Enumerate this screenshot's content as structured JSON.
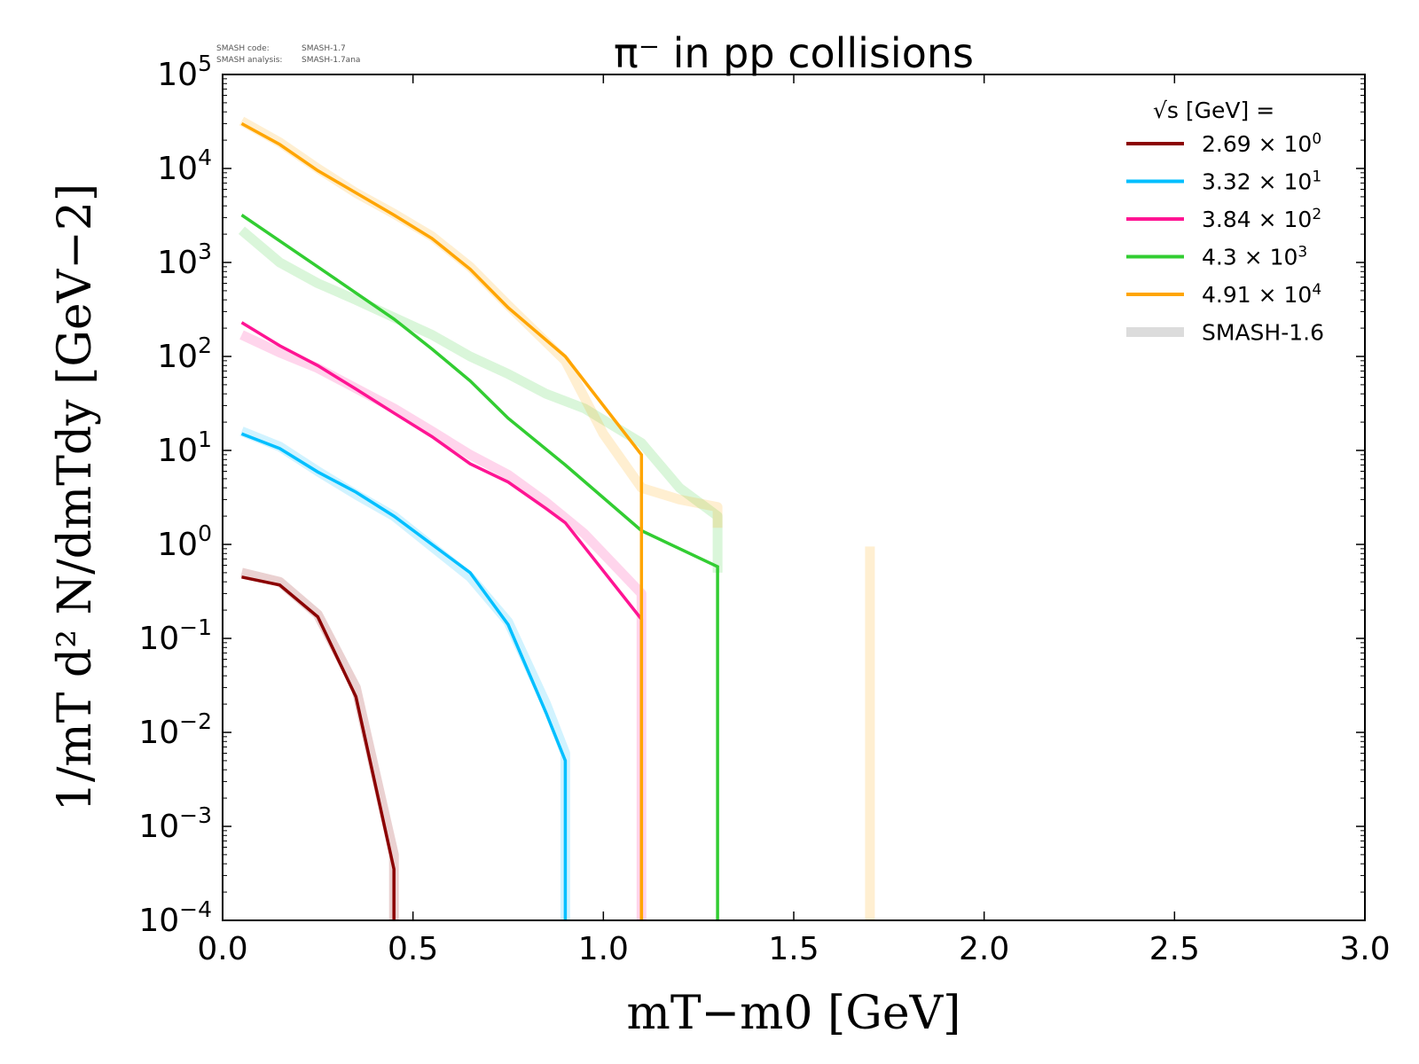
{
  "meta": {
    "code_label": "SMASH code:",
    "code_value": "SMASH-1.7",
    "analysis_label": "SMASH analysis:",
    "analysis_value": "SMASH-1.7ana"
  },
  "chart_data": {
    "type": "line",
    "title": "π⁻ in pp collisions",
    "xlabel": "mT−m0 [GeV]",
    "ylabel": "1/mT d² N/dmTdy [GeV−2]",
    "xlim": [
      0.0,
      3.0
    ],
    "ylim": [
      0.0001,
      100000
    ],
    "yscale": "log",
    "grid": false,
    "legend_position": "top-right",
    "legend_title": "√s  [GeV] =",
    "x_ticks": [
      "0.0",
      "0.5",
      "1.0",
      "1.5",
      "2.0",
      "2.5",
      "3.0"
    ],
    "y_ticks": [
      {
        "base": "10",
        "exp": "5"
      },
      {
        "base": "10",
        "exp": "4"
      },
      {
        "base": "10",
        "exp": "3"
      },
      {
        "base": "10",
        "exp": "2"
      },
      {
        "base": "10",
        "exp": "1"
      },
      {
        "base": "10",
        "exp": "0"
      },
      {
        "base": "10",
        "exp": "−1"
      },
      {
        "base": "10",
        "exp": "−2"
      },
      {
        "base": "10",
        "exp": "−3"
      },
      {
        "base": "10",
        "exp": "−4"
      }
    ],
    "series": [
      {
        "name": "2.69 × 10⁰",
        "label_mant": "2.69 × 10",
        "label_exp": "0",
        "color": "#8b0000",
        "x": [
          0.05,
          0.15,
          0.25,
          0.35,
          0.45,
          0.45
        ],
        "y": [
          0.45,
          0.37,
          0.17,
          0.024,
          0.00035,
          0.0001
        ]
      },
      {
        "name": "3.32 × 10¹",
        "label_mant": "3.32 × 10",
        "label_exp": "1",
        "color": "#00bfff",
        "x": [
          0.05,
          0.15,
          0.25,
          0.35,
          0.45,
          0.55,
          0.65,
          0.75,
          0.85,
          0.9,
          0.9
        ],
        "y": [
          15,
          10.5,
          5.9,
          3.6,
          2.0,
          1.0,
          0.5,
          0.14,
          0.016,
          0.005,
          0.0001
        ]
      },
      {
        "name": "3.84 × 10²",
        "label_mant": "3.84 × 10",
        "label_exp": "2",
        "color": "#ff1493",
        "x": [
          0.05,
          0.15,
          0.25,
          0.35,
          0.45,
          0.55,
          0.65,
          0.75,
          0.85,
          0.9,
          1.1,
          1.1
        ],
        "y": [
          230,
          130,
          80,
          45,
          25,
          14,
          7.2,
          4.6,
          2.4,
          1.7,
          0.16,
          0.0001
        ]
      },
      {
        "name": "4.3 × 10³",
        "label_mant": "4.3 × 10",
        "label_exp": "3",
        "color": "#32cd32",
        "x": [
          0.05,
          0.25,
          0.45,
          0.55,
          0.65,
          0.75,
          0.9,
          1.1,
          1.3,
          1.3
        ],
        "y": [
          3200,
          900,
          250,
          120,
          55,
          22,
          7,
          1.4,
          0.58,
          0.0001
        ]
      },
      {
        "name": "4.91 × 10⁴",
        "label_mant": "4.91 × 10",
        "label_exp": "4",
        "color": "#ffa500",
        "x": [
          0.05,
          0.15,
          0.25,
          0.45,
          0.55,
          0.65,
          0.75,
          0.9,
          1.1,
          1.1
        ],
        "y": [
          30000,
          18000,
          9500,
          3200,
          1800,
          850,
          330,
          100,
          9,
          0.0001
        ]
      },
      {
        "name": "SMASH-1.6",
        "color": "#dcdcdc",
        "x": [],
        "y": []
      }
    ],
    "reference_series": [
      {
        "version": "SMASH-1.6",
        "color": "#8b0000",
        "x": [
          0.05,
          0.15,
          0.25,
          0.35,
          0.45,
          0.45
        ],
        "y": [
          0.5,
          0.4,
          0.18,
          0.03,
          0.0005,
          0.0001
        ]
      },
      {
        "version": "SMASH-1.6",
        "color": "#00bfff",
        "x": [
          0.05,
          0.15,
          0.25,
          0.35,
          0.45,
          0.55,
          0.65,
          0.75,
          0.85,
          0.9,
          0.9
        ],
        "y": [
          16,
          11,
          6.0,
          3.4,
          2.0,
          0.95,
          0.45,
          0.15,
          0.02,
          0.006,
          0.0001
        ]
      },
      {
        "version": "SMASH-1.6",
        "color": "#ff1493",
        "x": [
          0.05,
          0.15,
          0.25,
          0.45,
          0.55,
          0.65,
          0.75,
          0.85,
          0.95,
          1.1,
          1.1
        ],
        "y": [
          170,
          110,
          75,
          28,
          16,
          9,
          5.5,
          2.8,
          1.3,
          0.3,
          0.0001
        ]
      },
      {
        "version": "SMASH-1.6",
        "color": "#32cd32",
        "x": [
          0.05,
          0.15,
          0.25,
          0.35,
          0.45,
          0.55,
          0.65,
          0.75,
          0.85,
          0.95,
          1.1,
          1.2,
          1.3,
          1.3
        ],
        "y": [
          2200,
          1000,
          600,
          400,
          260,
          170,
          100,
          65,
          40,
          28,
          12,
          4,
          2,
          0.5
        ]
      },
      {
        "version": "SMASH-1.6",
        "color": "#ffa500",
        "x": [
          0.05,
          0.15,
          0.25,
          0.35,
          0.45,
          0.55,
          0.65,
          0.75,
          0.9,
          1.0,
          1.1,
          1.2,
          1.3,
          1.3
        ],
        "y": [
          32000,
          19000,
          10000,
          5500,
          3300,
          1900,
          900,
          350,
          90,
          15,
          4,
          3,
          2.5,
          1.5
        ]
      },
      {
        "version": "SMASH-1.6",
        "color": "#ffa500",
        "x": [
          1.7,
          1.7
        ],
        "y": [
          0.95,
          0.0001
        ]
      }
    ]
  }
}
